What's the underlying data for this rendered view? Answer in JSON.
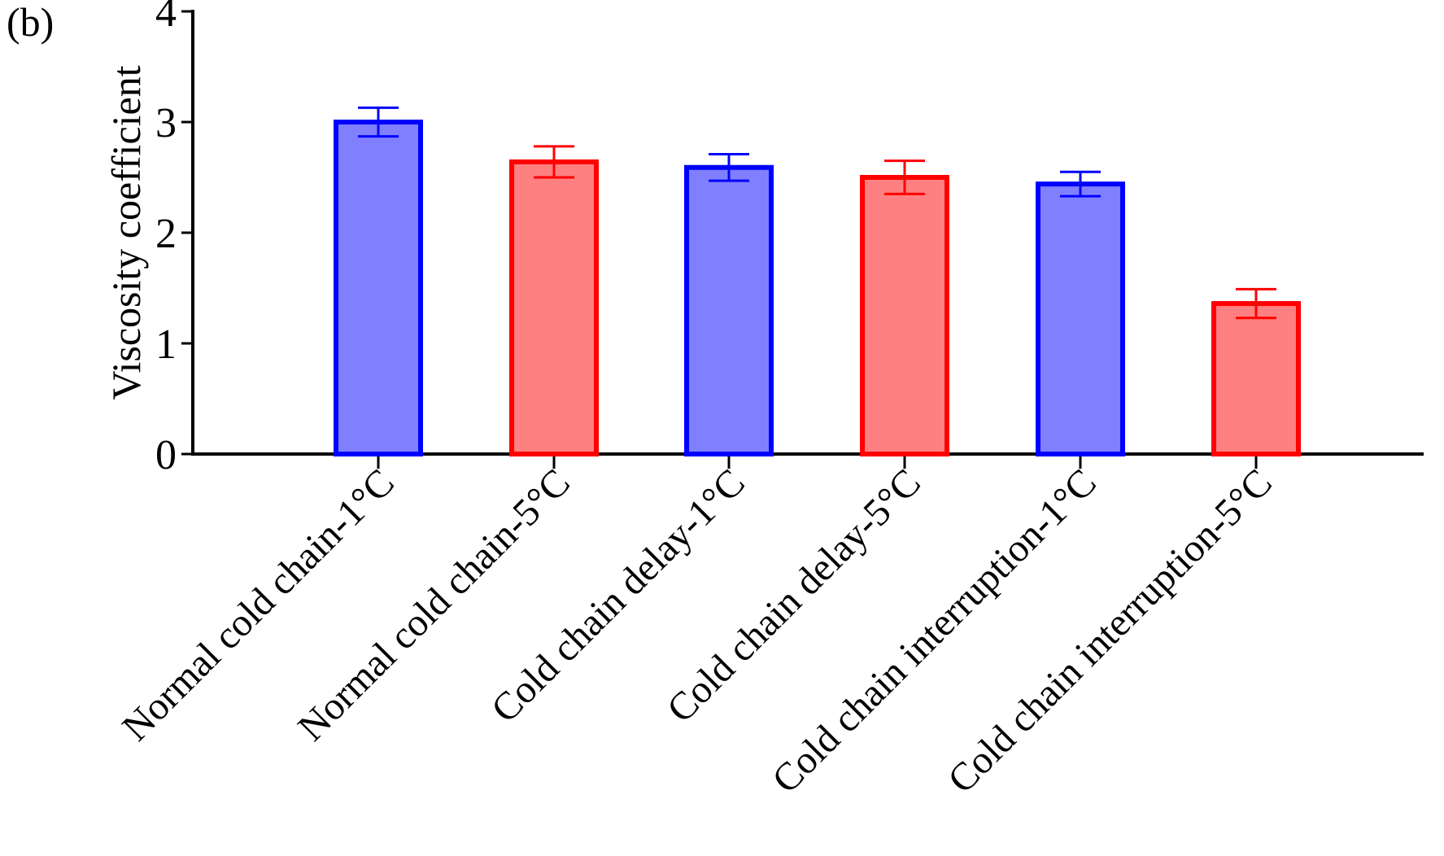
{
  "panel_label": "(b)",
  "chart_data": {
    "type": "bar",
    "title": "",
    "xlabel": "",
    "ylabel": "Viscosity coefficient",
    "ylim": [
      0,
      4
    ],
    "yticks": [
      0,
      1,
      2,
      3,
      4
    ],
    "grid": false,
    "legend": "none",
    "categories": [
      "Normal cold chain-1°C",
      "Normal cold chain-5°C",
      "Cold chain delay-1°C",
      "Cold chain delay-5°C",
      "Cold chain interruption-1°C",
      "Cold chain interruption-5°C"
    ],
    "values": [
      3.0,
      2.64,
      2.59,
      2.5,
      2.44,
      1.36
    ],
    "errors": [
      0.13,
      0.14,
      0.12,
      0.15,
      0.11,
      0.13
    ],
    "bar_fill_colors": [
      "#8080ff",
      "#ff8080",
      "#8080ff",
      "#ff8080",
      "#8080ff",
      "#ff8080"
    ],
    "bar_edge_colors": [
      "#0000ff",
      "#ff0000",
      "#0000ff",
      "#ff0000",
      "#0000ff",
      "#ff0000"
    ]
  }
}
